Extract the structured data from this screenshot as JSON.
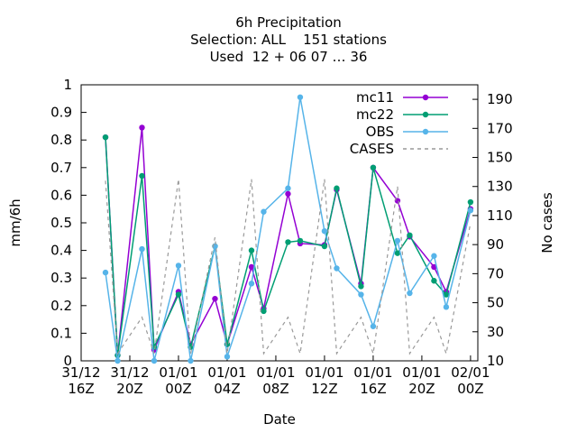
{
  "chart_data": {
    "type": "line",
    "title": "6h Precipitation\nSelection: ALL    151 stations\nUsed  12 + 06 07 … 36",
    "xlabel": "Date",
    "ylabel": "mm/6h",
    "y2label": "No cases",
    "x": [
      2,
      3,
      5,
      6,
      8,
      9,
      11,
      12,
      14,
      15,
      17,
      18,
      20,
      21,
      23,
      24,
      26,
      27,
      29,
      30,
      32
    ],
    "xlim": [
      0,
      32.6
    ],
    "xticks": [
      {
        "value": 0,
        "label": "31/12\n16Z"
      },
      {
        "value": 4,
        "label": "31/12\n20Z"
      },
      {
        "value": 8,
        "label": "01/01\n00Z"
      },
      {
        "value": 12,
        "label": "01/01\n04Z"
      },
      {
        "value": 16,
        "label": "01/01\n08Z"
      },
      {
        "value": 20,
        "label": "01/01\n12Z"
      },
      {
        "value": 24,
        "label": "01/01\n16Z"
      },
      {
        "value": 28,
        "label": "01/01\n20Z"
      },
      {
        "value": 32,
        "label": "02/01\n00Z"
      }
    ],
    "ylim": [
      0,
      1
    ],
    "yticks": [
      0,
      0.1,
      0.2,
      0.3,
      0.4,
      0.5,
      0.6,
      0.7,
      0.8,
      0.9,
      1
    ],
    "y2lim": [
      10,
      200
    ],
    "y2ticks": [
      10,
      30,
      50,
      70,
      90,
      110,
      130,
      150,
      170,
      190
    ],
    "series": [
      {
        "name": "mc11",
        "color": "#9400d3",
        "values": [
          0.81,
          0.02,
          0.845,
          0.04,
          0.25,
          0.06,
          0.225,
          0.06,
          0.34,
          0.19,
          0.605,
          0.425,
          0.42,
          0.62,
          0.28,
          0.7,
          0.58,
          0.45,
          0.34,
          0.25,
          0.55
        ]
      },
      {
        "name": "mc22",
        "color": "#009e73",
        "values": [
          0.81,
          0.02,
          0.67,
          0.05,
          0.24,
          0.05,
          0.415,
          0.06,
          0.4,
          0.18,
          0.43,
          0.435,
          0.415,
          0.625,
          0.27,
          0.7,
          0.39,
          0.455,
          0.29,
          0.24,
          0.575
        ]
      },
      {
        "name": "OBS",
        "color": "#56b4e9",
        "values": [
          0.32,
          0.0,
          0.405,
          0.0,
          0.345,
          0.0,
          0.415,
          0.015,
          0.28,
          0.54,
          0.625,
          0.955,
          0.47,
          0.335,
          0.24,
          0.125,
          0.435,
          0.245,
          0.38,
          0.195,
          0.545
        ]
      },
      {
        "name": "CASES",
        "color": "#999999",
        "axis": "y2",
        "dashed": true,
        "values": [
          134,
          15,
          40,
          15,
          135,
          15,
          95,
          15,
          135,
          15,
          40,
          15,
          135,
          15,
          40,
          15,
          130,
          15,
          40,
          15,
          105
        ]
      }
    ],
    "legend": "upper right"
  }
}
